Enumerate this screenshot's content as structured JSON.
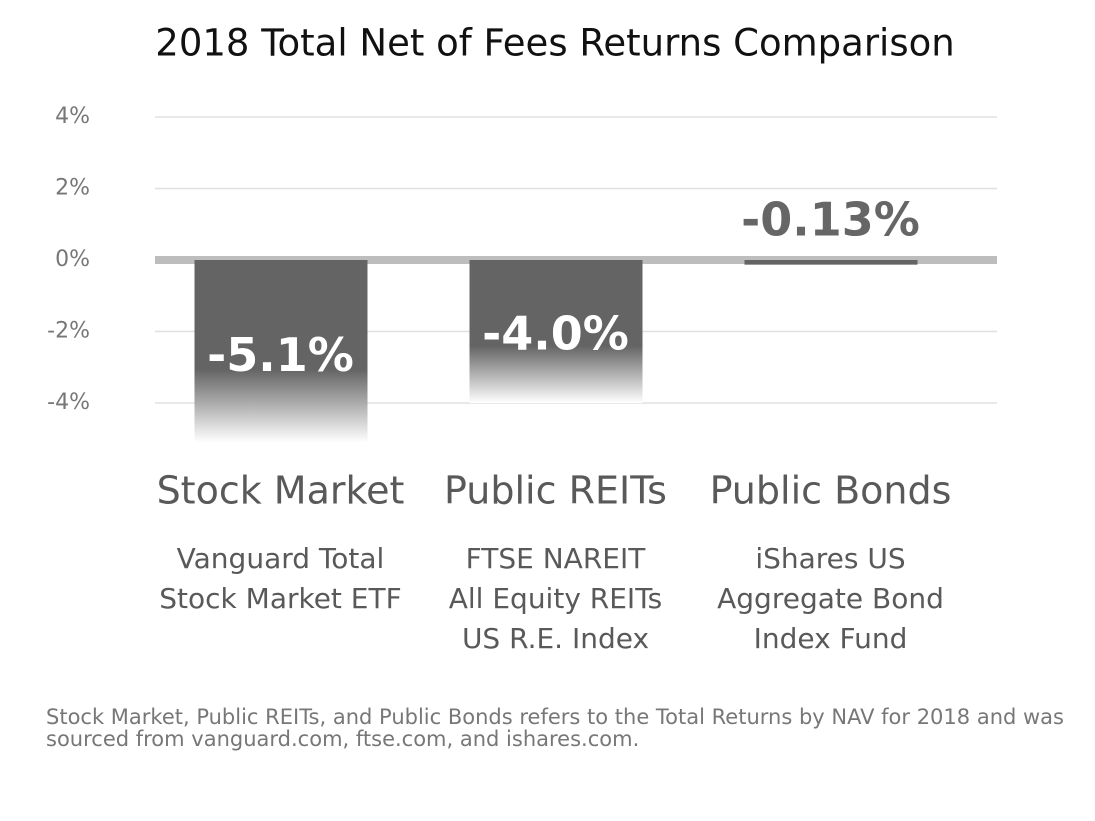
{
  "chart_data": {
    "type": "bar",
    "title": "2018 Total Net of Fees Returns Comparison",
    "categories": [
      "Stock Market",
      "Public REITs",
      "Public Bonds"
    ],
    "descriptions": [
      [
        "Vanguard Total",
        "Stock Market ETF"
      ],
      [
        "FTSE NAREIT",
        "All Equity REITs",
        "US R.E. Index"
      ],
      [
        "iShares US",
        "Aggregate Bond",
        "Index Fund"
      ]
    ],
    "values": [
      -5.1,
      -4.0,
      -0.13
    ],
    "value_labels": [
      "-5.1%",
      "-4.0%",
      "-0.13%"
    ],
    "color": "#646464",
    "ylim": [
      -5.2,
      4.4
    ],
    "yticks": [
      {
        "value": 4,
        "label": "4%"
      },
      {
        "value": 2,
        "label": "2%"
      },
      {
        "value": 0,
        "label": "0%"
      },
      {
        "value": -2,
        "label": "-2%"
      },
      {
        "value": -4,
        "label": "-4%"
      }
    ],
    "grid": true,
    "footnote": "Stock Market, Public REITs, and Public Bonds refers to the Total Returns by NAV for 2018 and was sourced from vanguard.com, ftse.com, and ishares.com."
  }
}
